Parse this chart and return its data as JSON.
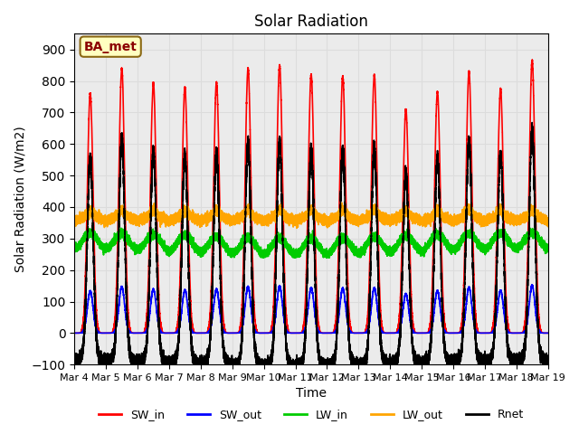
{
  "title": "Solar Radiation",
  "xlabel": "Time",
  "ylabel": "Solar Radiation (W/m2)",
  "ylim": [
    -100,
    950
  ],
  "xlim": [
    0,
    15
  ],
  "yticks": [
    -100,
    0,
    100,
    200,
    300,
    400,
    500,
    600,
    700,
    800,
    900
  ],
  "xtick_labels": [
    "Mar 4",
    "Mar 5",
    "Mar 6",
    "Mar 7",
    "Mar 8",
    "Mar 9",
    "Mar 10",
    "Mar 11",
    "Mar 12",
    "Mar 13",
    "Mar 14",
    "Mar 15",
    "Mar 16",
    "Mar 17",
    "Mar 18",
    "Mar 19"
  ],
  "annotation_text": "BA_met",
  "annotation_color": "#8B0000",
  "annotation_bg": "#FFFFC0",
  "colors": {
    "SW_in": "#FF0000",
    "SW_out": "#0000FF",
    "LW_in": "#00CC00",
    "LW_out": "#FFA500",
    "Rnet": "#000000"
  },
  "lw": 1.2,
  "grid_color": "#DCDCDC",
  "bg_color": "#EBEBEB",
  "legend_ncol": 5
}
